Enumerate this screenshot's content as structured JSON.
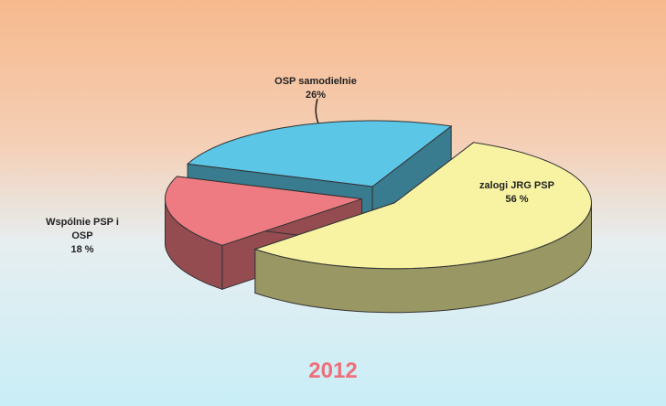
{
  "chart_data": {
    "type": "pie",
    "title": "2012",
    "categories": [
      "OSP samodielnie",
      "zalogi JRG PSP",
      "Wspólnie PSP i OSP"
    ],
    "values": [
      26,
      56,
      18
    ],
    "value_labels": [
      "26%",
      "56 %",
      "18 %"
    ],
    "colors": [
      "#5cc6e6",
      "#f7f3a2",
      "#ee7b82"
    ]
  }
}
